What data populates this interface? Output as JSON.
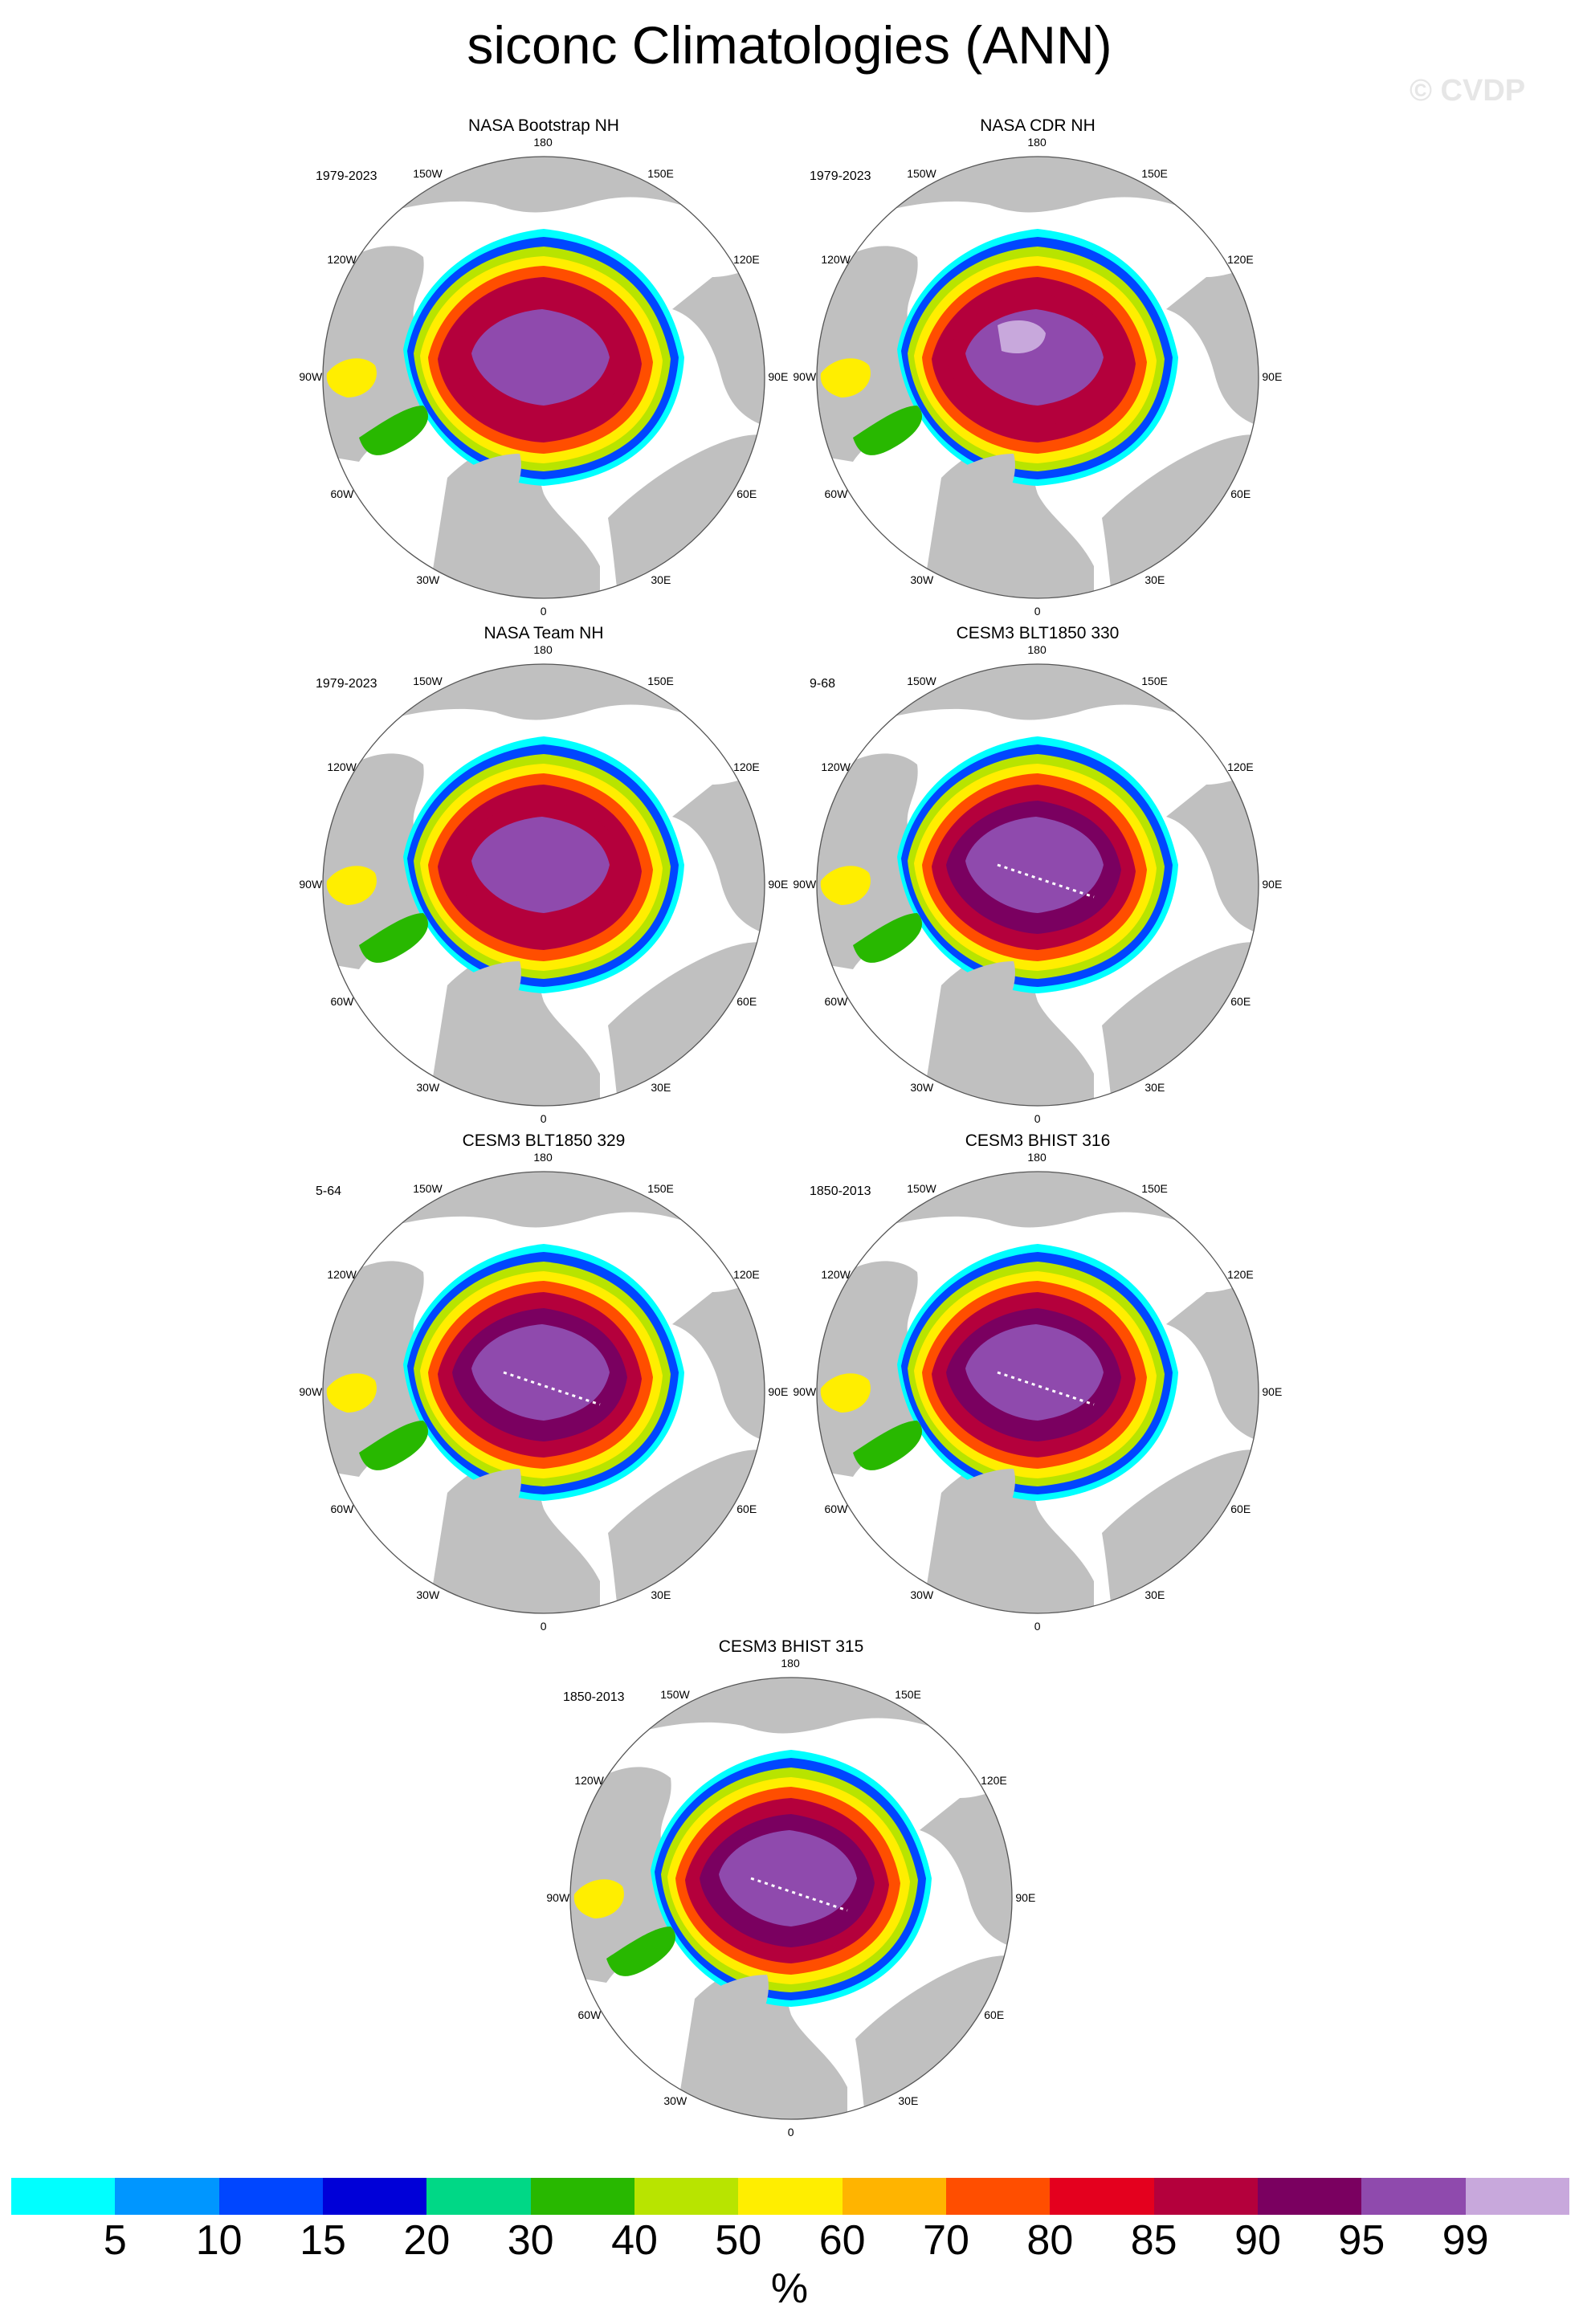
{
  "title": "siconc Climatologies (ANN)",
  "watermark": "© CVDP",
  "lon_labels": [
    "180",
    "150E",
    "120E",
    "90E",
    "60E",
    "30E",
    "0",
    "30W",
    "60W",
    "90W",
    "120W",
    "150W"
  ],
  "panels": [
    {
      "title": "NASA Bootstrap NH",
      "period": "1979-2023",
      "variant": "obs"
    },
    {
      "title": "NASA CDR NH",
      "period": "1979-2023",
      "variant": "obs"
    },
    {
      "title": "NASA Team NH",
      "period": "1979-2023",
      "variant": "obs"
    },
    {
      "title": "CESM3 BLT1850 330",
      "period": "9-68",
      "variant": "model"
    },
    {
      "title": "CESM3 BLT1850 329",
      "period": "5-64",
      "variant": "model"
    },
    {
      "title": "CESM3 BHIST 316",
      "period": "1850-2013",
      "variant": "model"
    },
    {
      "title": "CESM3 BHIST 315",
      "period": "1850-2013",
      "variant": "model"
    }
  ],
  "colorbar": {
    "unit": "%",
    "labels": [
      "5",
      "10",
      "15",
      "20",
      "30",
      "40",
      "50",
      "60",
      "70",
      "80",
      "85",
      "90",
      "95",
      "99"
    ],
    "colors": [
      "#00ffff",
      "#0096ff",
      "#0046ff",
      "#0000d8",
      "#00d886",
      "#28b800",
      "#b8e400",
      "#ffee00",
      "#ffb400",
      "#ff4e00",
      "#e4001e",
      "#b4003c",
      "#7a0060",
      "#8f4aad",
      "#c8a8dc"
    ]
  },
  "land_color": "#c0c0c0",
  "ocean_color": "#ffffff"
}
